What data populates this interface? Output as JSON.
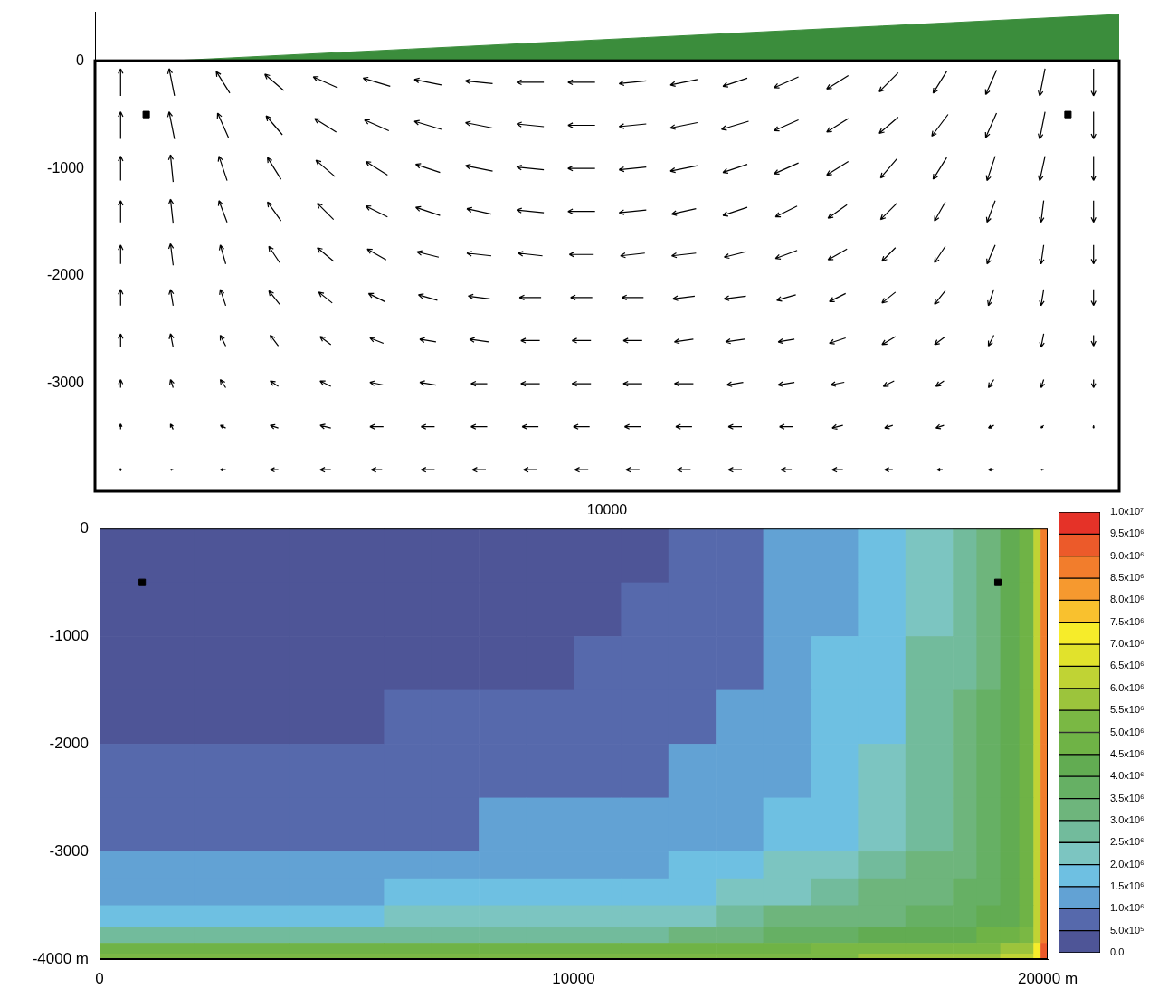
{
  "chart_data": [
    {
      "type": "quiver",
      "color": "#000000",
      "grid": false,
      "xlim": [
        0,
        20000
      ],
      "ylim": [
        -4000,
        450
      ],
      "xticks": [
        10000
      ],
      "yticks": [
        0,
        -1000,
        -2000,
        -3000
      ],
      "x": [
        500,
        1500,
        2500,
        3500,
        4500,
        5500,
        6500,
        7500,
        8500,
        9500,
        10500,
        11500,
        12500,
        13500,
        14500,
        15500,
        16500,
        17500,
        18500,
        19500
      ],
      "y": [
        -200,
        -600,
        -1000,
        -1400,
        -1800,
        -2200,
        -2600,
        -3000,
        -3400,
        -3800
      ],
      "u": [
        [
          0,
          -0.2,
          -0.5,
          -0.7,
          -0.9,
          -1.0,
          -1.0,
          -1.0,
          -1.0,
          -1.0,
          -1.0,
          -1.0,
          -0.9,
          -0.9,
          -0.8,
          -0.7,
          -0.5,
          -0.4,
          -0.2,
          0
        ],
        [
          0,
          -0.2,
          -0.4,
          -0.6,
          -0.8,
          -0.9,
          -1.0,
          -1.0,
          -1.0,
          -1.0,
          -1.0,
          -1.0,
          -1.0,
          -0.9,
          -0.8,
          -0.7,
          -0.6,
          -0.4,
          -0.2,
          0
        ],
        [
          0,
          -0.1,
          -0.3,
          -0.5,
          -0.7,
          -0.8,
          -0.9,
          -1.0,
          -1.0,
          -1.0,
          -1.0,
          -1.0,
          -0.9,
          -0.9,
          -0.8,
          -0.6,
          -0.5,
          -0.3,
          -0.2,
          0
        ],
        [
          0,
          -0.1,
          -0.3,
          -0.5,
          -0.6,
          -0.8,
          -0.9,
          -0.9,
          -1.0,
          -1.0,
          -1.0,
          -0.9,
          -0.9,
          -0.8,
          -0.7,
          -0.6,
          -0.4,
          -0.3,
          -0.1,
          0
        ],
        [
          0,
          -0.1,
          -0.2,
          -0.4,
          -0.6,
          -0.7,
          -0.8,
          -0.9,
          -0.9,
          -0.9,
          -0.9,
          -0.9,
          -0.8,
          -0.8,
          -0.7,
          -0.5,
          -0.4,
          -0.3,
          -0.1,
          0
        ],
        [
          0,
          -0.1,
          -0.2,
          -0.4,
          -0.5,
          -0.6,
          -0.7,
          -0.8,
          -0.8,
          -0.8,
          -0.8,
          -0.8,
          -0.8,
          -0.7,
          -0.6,
          -0.5,
          -0.4,
          -0.2,
          -0.1,
          0
        ],
        [
          0,
          -0.1,
          -0.2,
          -0.3,
          -0.4,
          -0.5,
          -0.6,
          -0.7,
          -0.7,
          -0.7,
          -0.7,
          -0.7,
          -0.7,
          -0.6,
          -0.6,
          -0.5,
          -0.4,
          -0.2,
          -0.1,
          0
        ],
        [
          0,
          -0.1,
          -0.2,
          -0.3,
          -0.4,
          -0.5,
          -0.6,
          -0.6,
          -0.7,
          -0.7,
          -0.7,
          -0.7,
          -0.6,
          -0.6,
          -0.5,
          -0.4,
          -0.3,
          -0.2,
          -0.1,
          0
        ],
        [
          0,
          -0.1,
          -0.2,
          -0.3,
          -0.4,
          -0.5,
          -0.5,
          -0.6,
          -0.6,
          -0.6,
          -0.6,
          -0.6,
          -0.5,
          -0.5,
          -0.4,
          -0.3,
          -0.3,
          -0.2,
          -0.1,
          0
        ],
        [
          0,
          -0.1,
          -0.2,
          -0.3,
          -0.4,
          -0.4,
          -0.5,
          -0.5,
          -0.5,
          -0.5,
          -0.5,
          -0.5,
          -0.5,
          -0.4,
          -0.4,
          -0.3,
          -0.2,
          -0.2,
          -0.1,
          0
        ]
      ],
      "v": [
        [
          1.0,
          1.0,
          0.8,
          0.6,
          0.4,
          0.3,
          0.2,
          0.1,
          0.0,
          0.0,
          -0.1,
          -0.2,
          -0.3,
          -0.4,
          -0.5,
          -0.7,
          -0.8,
          -0.9,
          -1.0,
          -1.0
        ],
        [
          1.0,
          1.0,
          0.9,
          0.7,
          0.5,
          0.4,
          0.3,
          0.2,
          0.1,
          0.0,
          -0.1,
          -0.2,
          -0.3,
          -0.4,
          -0.5,
          -0.6,
          -0.8,
          -0.9,
          -1.0,
          -1.0
        ],
        [
          0.9,
          1.0,
          0.9,
          0.8,
          0.6,
          0.5,
          0.3,
          0.2,
          0.1,
          0.0,
          -0.1,
          -0.2,
          -0.3,
          -0.4,
          -0.5,
          -0.7,
          -0.8,
          -0.9,
          -0.9,
          -0.9
        ],
        [
          0.8,
          0.9,
          0.8,
          0.7,
          0.6,
          0.4,
          0.3,
          0.2,
          0.1,
          0.0,
          -0.1,
          -0.2,
          -0.3,
          -0.4,
          -0.5,
          -0.6,
          -0.7,
          -0.8,
          -0.8,
          -0.8
        ],
        [
          0.7,
          0.8,
          0.7,
          0.6,
          0.5,
          0.4,
          0.2,
          0.1,
          0.1,
          0.0,
          -0.1,
          -0.1,
          -0.2,
          -0.3,
          -0.4,
          -0.5,
          -0.6,
          -0.7,
          -0.7,
          -0.7
        ],
        [
          0.6,
          0.6,
          0.6,
          0.5,
          0.4,
          0.3,
          0.2,
          0.1,
          0.0,
          0.0,
          0.0,
          -0.1,
          -0.1,
          -0.2,
          -0.3,
          -0.4,
          -0.5,
          -0.6,
          -0.6,
          -0.6
        ],
        [
          0.5,
          0.5,
          0.4,
          0.4,
          0.3,
          0.2,
          0.1,
          0.1,
          0.0,
          0.0,
          0.0,
          -0.1,
          -0.1,
          -0.1,
          -0.2,
          -0.3,
          -0.3,
          -0.4,
          -0.5,
          -0.4
        ],
        [
          0.3,
          0.3,
          0.3,
          0.2,
          0.2,
          0.1,
          0.1,
          0.0,
          0.0,
          0.0,
          0.0,
          0.0,
          -0.1,
          -0.1,
          -0.1,
          -0.2,
          -0.2,
          -0.3,
          -0.3,
          -0.3
        ],
        [
          0.2,
          0.2,
          0.1,
          0.1,
          0.1,
          0.0,
          0.0,
          0.0,
          0.0,
          0.0,
          0.0,
          0.0,
          0.0,
          0.0,
          -0.1,
          -0.1,
          -0.1,
          -0.1,
          -0.1,
          -0.1
        ],
        [
          0.1,
          0.0,
          0.0,
          0.0,
          0.0,
          0.0,
          0.0,
          0.0,
          0.0,
          0.0,
          0.0,
          0.0,
          0.0,
          0.0,
          0.0,
          0.0,
          0.0,
          0.0,
          0.0,
          0.0
        ]
      ],
      "series": [
        {
          "type": "area",
          "color": "#3b8d3c",
          "x": [
            1500,
            20000
          ],
          "values": [
            0,
            430
          ]
        },
        {
          "type": "scatter",
          "marker": "square",
          "color": "#000000",
          "x": [
            1000,
            19000
          ],
          "values": [
            -500,
            -500
          ]
        }
      ]
    },
    {
      "type": "heatmap",
      "grid": false,
      "xlim": [
        0,
        20000
      ],
      "ylim": [
        -4000,
        0
      ],
      "xticks": [
        0,
        10000,
        {
          "value": 20000,
          "label": "20000 m"
        }
      ],
      "yticks": [
        0,
        -1000,
        -2000,
        -3000,
        {
          "value": -4000,
          "label": "-4000 m"
        }
      ],
      "x_edges": [
        0,
        1000,
        2000,
        3000,
        4000,
        5000,
        6000,
        7000,
        8000,
        9000,
        10000,
        11000,
        12000,
        13000,
        14000,
        15000,
        16000,
        17000,
        18000,
        18500,
        19000,
        19400,
        19700,
        19850,
        20000
      ],
      "y_edges": [
        0,
        -500,
        -1000,
        -1500,
        -2000,
        -2500,
        -3000,
        -3250,
        -3500,
        -3700,
        -3850,
        -3950,
        -4000
      ],
      "cells": [
        [
          250000,
          250000,
          250000,
          250000,
          250000,
          250000,
          250000,
          250000,
          250000,
          250000,
          250000,
          250000,
          750000,
          750000,
          1250000,
          1250000,
          1750000,
          2250000,
          2750000,
          3250000,
          4250000,
          4750000,
          6250000,
          8750000
        ],
        [
          250000,
          250000,
          250000,
          250000,
          250000,
          250000,
          250000,
          250000,
          250000,
          250000,
          250000,
          750000,
          750000,
          750000,
          1250000,
          1250000,
          1750000,
          2250000,
          2750000,
          3250000,
          4250000,
          4750000,
          6250000,
          8750000
        ],
        [
          250000,
          250000,
          250000,
          250000,
          250000,
          250000,
          250000,
          250000,
          250000,
          250000,
          750000,
          750000,
          750000,
          750000,
          1250000,
          1750000,
          1750000,
          2750000,
          2750000,
          3250000,
          4250000,
          4750000,
          6250000,
          8750000
        ],
        [
          250000,
          250000,
          250000,
          250000,
          250000,
          250000,
          750000,
          750000,
          750000,
          750000,
          750000,
          750000,
          750000,
          1250000,
          1250000,
          1750000,
          1750000,
          2750000,
          3250000,
          3750000,
          4250000,
          4750000,
          6250000,
          8750000
        ],
        [
          750000,
          750000,
          750000,
          750000,
          750000,
          750000,
          750000,
          750000,
          750000,
          750000,
          750000,
          750000,
          1250000,
          1250000,
          1250000,
          1750000,
          2250000,
          2750000,
          3250000,
          3750000,
          4250000,
          4750000,
          6250000,
          8750000
        ],
        [
          750000,
          750000,
          750000,
          750000,
          750000,
          750000,
          750000,
          750000,
          1250000,
          1250000,
          1250000,
          1250000,
          1250000,
          1250000,
          1750000,
          1750000,
          2250000,
          2750000,
          3250000,
          3750000,
          4250000,
          4750000,
          6250000,
          8750000
        ],
        [
          1250000,
          1250000,
          1250000,
          1250000,
          1250000,
          1250000,
          1250000,
          1250000,
          1250000,
          1250000,
          1250000,
          1250000,
          1750000,
          1750000,
          2250000,
          2250000,
          2750000,
          3250000,
          3250000,
          3750000,
          4250000,
          4750000,
          6250000,
          8750000
        ],
        [
          1250000,
          1250000,
          1250000,
          1250000,
          1250000,
          1250000,
          1750000,
          1750000,
          1750000,
          1750000,
          1750000,
          1750000,
          1750000,
          2250000,
          2250000,
          2750000,
          3250000,
          3250000,
          3750000,
          3750000,
          4250000,
          4750000,
          6250000,
          8750000
        ],
        [
          1750000,
          1750000,
          1750000,
          1750000,
          1750000,
          1750000,
          2250000,
          2250000,
          2250000,
          2250000,
          2250000,
          2250000,
          2250000,
          2750000,
          3250000,
          3250000,
          3250000,
          3750000,
          3750000,
          4250000,
          4250000,
          4750000,
          6250000,
          8750000
        ],
        [
          2750000,
          2750000,
          2750000,
          2750000,
          2750000,
          2750000,
          2750000,
          2750000,
          2750000,
          2750000,
          2750000,
          2750000,
          3250000,
          3250000,
          3750000,
          3750000,
          4250000,
          4250000,
          4250000,
          4750000,
          4750000,
          5250000,
          6250000,
          8750000
        ],
        [
          4750000,
          4750000,
          4750000,
          4750000,
          4750000,
          4750000,
          4750000,
          4750000,
          4750000,
          4750000,
          4750000,
          4750000,
          4750000,
          4750000,
          4750000,
          5250000,
          5250000,
          5250000,
          5250000,
          5250000,
          5750000,
          5750000,
          7250000,
          9250000
        ],
        [
          5250000,
          5250000,
          5250000,
          5250000,
          5250000,
          5250000,
          5250000,
          5250000,
          5250000,
          5250000,
          5250000,
          5250000,
          5250000,
          5250000,
          5250000,
          5250000,
          5750000,
          5750000,
          5750000,
          5750000,
          6250000,
          6250000,
          7250000,
          9250000
        ]
      ],
      "colorbar": {
        "lim": [
          0,
          10000000
        ],
        "ticks": [
          {
            "value": 0,
            "label": "0.0"
          },
          {
            "value": 500000,
            "label": "5.0x10⁵"
          },
          {
            "value": 1000000,
            "label": "1.0x10⁶"
          },
          {
            "value": 1500000,
            "label": "1.5x10⁶"
          },
          {
            "value": 2000000,
            "label": "2.0x10⁶"
          },
          {
            "value": 2500000,
            "label": "2.5x10⁶"
          },
          {
            "value": 3000000,
            "label": "3.0x10⁶"
          },
          {
            "value": 3500000,
            "label": "3.5x10⁶"
          },
          {
            "value": 4000000,
            "label": "4.0x10⁶"
          },
          {
            "value": 4500000,
            "label": "4.5x10⁶"
          },
          {
            "value": 5000000,
            "label": "5.0x10⁶"
          },
          {
            "value": 5500000,
            "label": "5.5x10⁶"
          },
          {
            "value": 6000000,
            "label": "6.0x10⁶"
          },
          {
            "value": 6500000,
            "label": "6.5x10⁶"
          },
          {
            "value": 7000000,
            "label": "7.0x10⁶"
          },
          {
            "value": 7500000,
            "label": "7.5x10⁶"
          },
          {
            "value": 8000000,
            "label": "8.0x10⁶"
          },
          {
            "value": 8500000,
            "label": "8.5x10⁶"
          },
          {
            "value": 9000000,
            "label": "9.0x10⁶"
          },
          {
            "value": 9500000,
            "label": "9.5x10⁶"
          },
          {
            "value": 10000000,
            "label": "1.0x10⁷"
          }
        ],
        "colors": [
          "#4e5597",
          "#5669ac",
          "#62a2d4",
          "#6ec0e2",
          "#7cc5c1",
          "#72bb9c",
          "#6eb57c",
          "#66b064",
          "#62ac52",
          "#6fb346",
          "#7ab844",
          "#9cc43c",
          "#c0d334",
          "#e1e22c",
          "#f6ec2a",
          "#f9c12e",
          "#f6992f",
          "#f27d2c",
          "#ec5a2a",
          "#e53228"
        ]
      },
      "series": [
        {
          "type": "scatter",
          "marker": "square",
          "color": "#000000",
          "x": [
            900,
            18950
          ],
          "values": [
            -500,
            -500
          ]
        }
      ]
    }
  ]
}
